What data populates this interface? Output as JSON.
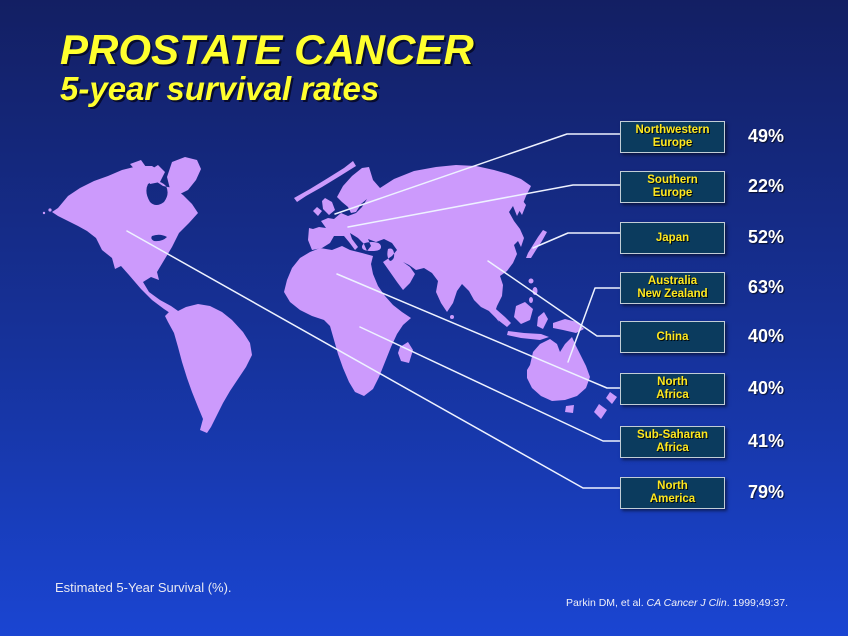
{
  "slide": {
    "title_line1": "PROSTATE CANCER",
    "title_line2": "5-year survival rates",
    "footnote": "Estimated 5-Year Survival (%).",
    "citation_prefix": "Parkin DM, et al. ",
    "citation_journal": "CA Cancer J Clin",
    "citation_suffix": ". 1999;49:37."
  },
  "colors": {
    "background_top": "#131f63",
    "background_bottom": "#1a45d2",
    "map_land": "#cc9afc",
    "callout_box_fill": "#0b3b5e",
    "callout_box_border": "#c2cdd6",
    "callout_text": "#ffe81e",
    "title_text": "#ffff2e",
    "value_text": "#ffffff",
    "leader_line": "#eef2ff"
  },
  "regions": [
    {
      "id": "northwestern-europe",
      "label_line1": "Northwestern",
      "label_line2": "Europe",
      "value": "49%"
    },
    {
      "id": "southern-europe",
      "label_line1": "Southern",
      "label_line2": "Europe",
      "value": "22%"
    },
    {
      "id": "japan",
      "label_line1": "Japan",
      "label_line2": "",
      "value": "52%"
    },
    {
      "id": "australia-new-zealand",
      "label_line1": "Australia",
      "label_line2": "New Zealand",
      "value": "63%"
    },
    {
      "id": "china",
      "label_line1": "China",
      "label_line2": "",
      "value": "40%"
    },
    {
      "id": "north-africa",
      "label_line1": "North",
      "label_line2": "Africa",
      "value": "40%"
    },
    {
      "id": "sub-saharan-africa",
      "label_line1": "Sub-Saharan",
      "label_line2": "Africa",
      "value": "41%"
    },
    {
      "id": "north-america",
      "label_line1": "North",
      "label_line2": "America",
      "value": "79%"
    }
  ],
  "chart_data": {
    "type": "table",
    "representation": "world map with callout label boxes and leader lines to regions",
    "title": "PROSTATE CANCER 5-year survival rates",
    "categories": [
      "Northwestern Europe",
      "Southern Europe",
      "Japan",
      "Australia New Zealand",
      "China",
      "North Africa",
      "Sub-Saharan Africa",
      "North America"
    ],
    "values": [
      49,
      22,
      52,
      63,
      40,
      40,
      41,
      79
    ],
    "unit": "%",
    "note": "Estimated 5-Year Survival (%).",
    "source": "Parkin DM, et al. CA Cancer J Clin. 1999;49:37."
  }
}
